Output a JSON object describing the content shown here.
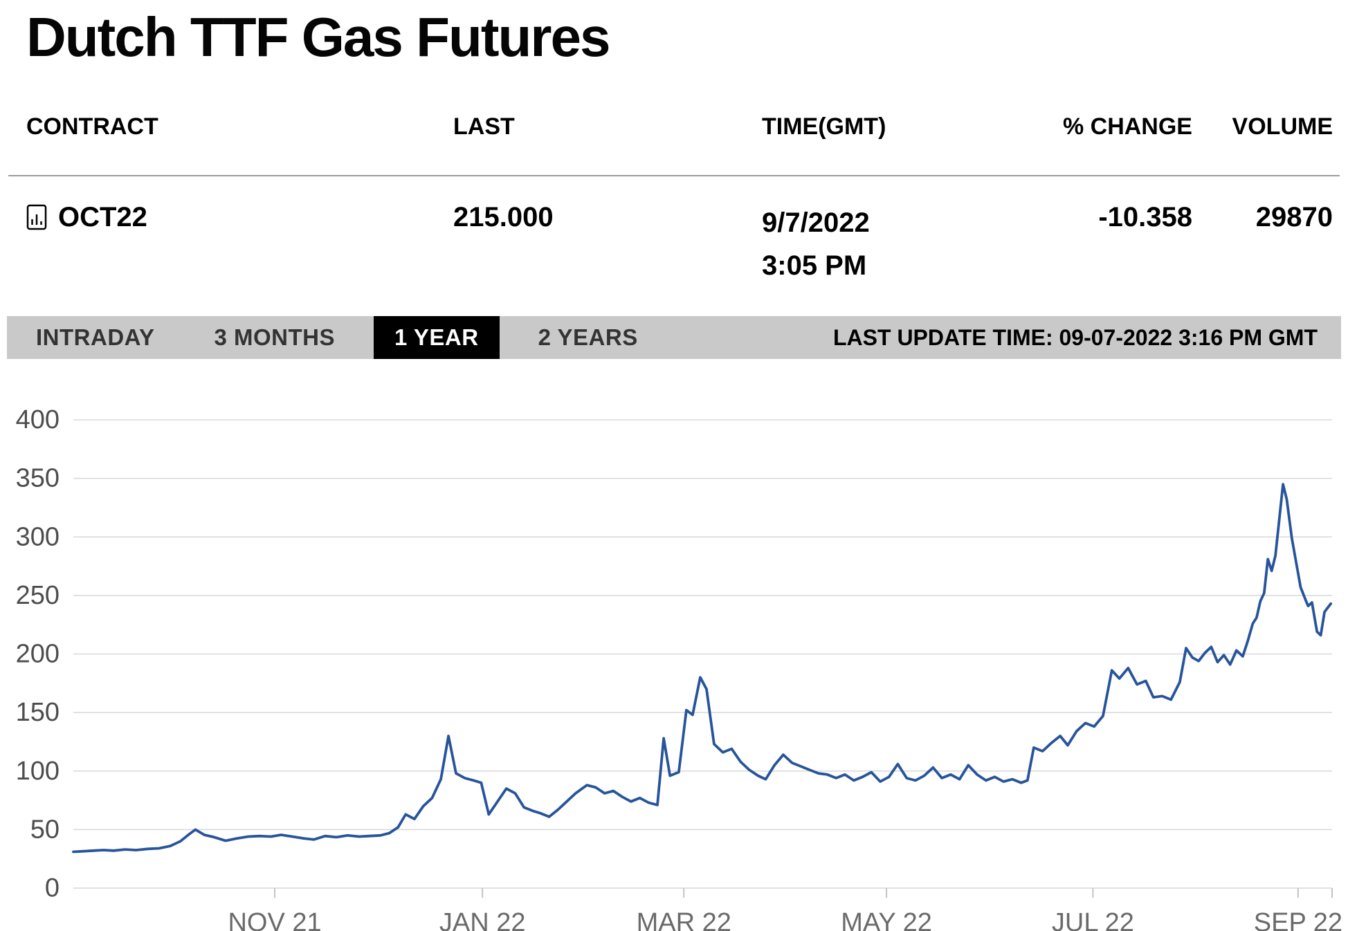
{
  "page": {
    "title": "Dutch TTF Gas Futures"
  },
  "table": {
    "headers": [
      "CONTRACT",
      "LAST",
      "TIME(GMT)",
      "% CHANGE",
      "VOLUME"
    ],
    "rows": [
      {
        "icon": "chart-document-icon",
        "contract": "OCT22",
        "last": "215.000",
        "date": "9/7/2022",
        "time": "3:05 PM",
        "change": "-10.358",
        "volume": "29870"
      }
    ]
  },
  "tabs": {
    "items": [
      {
        "label": "INTRADAY",
        "active": false
      },
      {
        "label": "3 MONTHS",
        "active": false
      },
      {
        "label": "1 YEAR",
        "active": true
      },
      {
        "label": "2 YEARS",
        "active": false
      }
    ],
    "last_update": "LAST UPDATE TIME: 09-07-2022 3:16 PM GMT"
  },
  "chart_data": {
    "type": "line",
    "title": "",
    "xlabel": "",
    "ylabel": "",
    "ylim": [
      0,
      400
    ],
    "y_ticks": [
      0,
      50,
      100,
      150,
      200,
      250,
      300,
      350,
      400
    ],
    "x_ticks": [
      {
        "label": "NOV 21",
        "pos": 16
      },
      {
        "label": "JAN 22",
        "pos": 32.5
      },
      {
        "label": "MAR 22",
        "pos": 48.5
      },
      {
        "label": "MAY 22",
        "pos": 64.6
      },
      {
        "label": "JUL 22",
        "pos": 81
      },
      {
        "label": "SEP 22",
        "pos": 97.3
      },
      {
        "label": "",
        "pos": 100
      }
    ],
    "grid": true,
    "legend": "none",
    "line_color": "#27549b",
    "grid_color": "#d8d8d8",
    "axis_color": "#4d4d4d",
    "x_axis_color": "#6a6a6a",
    "series": [
      {
        "name": "OCT22",
        "x_unit": "percent-of-year-axis",
        "points": [
          [
            0,
            31
          ],
          [
            0.8,
            31.5
          ],
          [
            1.6,
            32
          ],
          [
            2.4,
            32.5
          ],
          [
            3.2,
            32
          ],
          [
            4.1,
            33
          ],
          [
            5,
            32.5
          ],
          [
            5.9,
            33.5
          ],
          [
            6.8,
            34
          ],
          [
            7.7,
            36
          ],
          [
            8.5,
            40
          ],
          [
            9.2,
            46
          ],
          [
            9.7,
            50
          ],
          [
            10.4,
            45.5
          ],
          [
            11.2,
            43.5
          ],
          [
            12.1,
            40.5
          ],
          [
            13,
            42.5
          ],
          [
            13.9,
            44
          ],
          [
            14.8,
            44.5
          ],
          [
            15.7,
            44
          ],
          [
            16.5,
            45.5
          ],
          [
            17.4,
            44
          ],
          [
            18.3,
            42.5
          ],
          [
            19.1,
            41.5
          ],
          [
            20,
            44.5
          ],
          [
            20.9,
            43.5
          ],
          [
            21.8,
            45
          ],
          [
            22.7,
            44
          ],
          [
            23.5,
            44.5
          ],
          [
            24.4,
            45
          ],
          [
            25.1,
            47
          ],
          [
            25.8,
            52
          ],
          [
            26.4,
            63
          ],
          [
            27.1,
            59
          ],
          [
            27.8,
            70
          ],
          [
            28.5,
            77
          ],
          [
            29.2,
            93
          ],
          [
            29.8,
            130
          ],
          [
            30.4,
            98
          ],
          [
            31.1,
            94
          ],
          [
            31.8,
            92
          ],
          [
            32.4,
            90
          ],
          [
            33,
            63
          ],
          [
            33.7,
            74
          ],
          [
            34.4,
            85
          ],
          [
            35.1,
            81
          ],
          [
            35.8,
            69
          ],
          [
            36.5,
            66
          ],
          [
            37.1,
            64
          ],
          [
            37.8,
            61
          ],
          [
            38.5,
            67
          ],
          [
            39.2,
            74
          ],
          [
            39.9,
            81
          ],
          [
            40.8,
            88
          ],
          [
            41.5,
            86
          ],
          [
            42.2,
            81
          ],
          [
            42.9,
            83
          ],
          [
            43.6,
            78
          ],
          [
            44.3,
            74
          ],
          [
            45,
            77
          ],
          [
            45.7,
            73
          ],
          [
            46.4,
            71
          ],
          [
            46.9,
            128
          ],
          [
            47.4,
            96
          ],
          [
            48.1,
            99
          ],
          [
            48.7,
            152
          ],
          [
            49.2,
            148
          ],
          [
            49.8,
            180
          ],
          [
            50.3,
            170
          ],
          [
            50.9,
            123
          ],
          [
            51.6,
            116
          ],
          [
            52.3,
            119
          ],
          [
            53,
            108
          ],
          [
            53.7,
            101
          ],
          [
            54.4,
            96
          ],
          [
            55,
            93
          ],
          [
            55.7,
            105
          ],
          [
            56.4,
            114
          ],
          [
            57.1,
            107
          ],
          [
            57.8,
            104
          ],
          [
            58.5,
            101
          ],
          [
            59.2,
            98
          ],
          [
            59.9,
            97
          ],
          [
            60.6,
            94
          ],
          [
            61.3,
            97
          ],
          [
            62,
            92
          ],
          [
            62.7,
            95
          ],
          [
            63.4,
            99
          ],
          [
            64.1,
            91
          ],
          [
            64.8,
            95
          ],
          [
            65.5,
            106
          ],
          [
            66.2,
            94
          ],
          [
            66.9,
            92
          ],
          [
            67.6,
            96
          ],
          [
            68.3,
            103
          ],
          [
            69,
            94
          ],
          [
            69.7,
            97
          ],
          [
            70.4,
            93
          ],
          [
            71.1,
            105
          ],
          [
            71.8,
            97
          ],
          [
            72.5,
            92
          ],
          [
            73.2,
            95
          ],
          [
            73.9,
            91
          ],
          [
            74.6,
            93
          ],
          [
            75.3,
            90
          ],
          [
            75.8,
            92
          ],
          [
            76.3,
            120
          ],
          [
            77,
            117
          ],
          [
            77.7,
            124
          ],
          [
            78.4,
            130
          ],
          [
            79,
            122
          ],
          [
            79.7,
            134
          ],
          [
            80.4,
            141
          ],
          [
            81.1,
            138
          ],
          [
            81.8,
            147
          ],
          [
            82.5,
            186
          ],
          [
            83.1,
            179
          ],
          [
            83.8,
            188
          ],
          [
            84.5,
            174
          ],
          [
            85.2,
            177
          ],
          [
            85.8,
            163
          ],
          [
            86.5,
            164
          ],
          [
            87.2,
            161
          ],
          [
            87.9,
            176
          ],
          [
            88.4,
            205
          ],
          [
            88.9,
            197
          ],
          [
            89.4,
            194
          ],
          [
            89.9,
            201
          ],
          [
            90.4,
            206
          ],
          [
            90.9,
            193
          ],
          [
            91.4,
            199
          ],
          [
            91.9,
            191
          ],
          [
            92.4,
            203
          ],
          [
            92.9,
            198
          ],
          [
            93.3,
            211
          ],
          [
            93.7,
            226
          ],
          [
            94,
            231
          ],
          [
            94.3,
            245
          ],
          [
            94.6,
            252
          ],
          [
            94.9,
            281
          ],
          [
            95.2,
            271
          ],
          [
            95.5,
            284
          ],
          [
            96.1,
            345
          ],
          [
            96.4,
            332
          ],
          [
            96.8,
            299
          ],
          [
            97.5,
            257
          ],
          [
            97.9,
            246
          ],
          [
            98.1,
            241
          ],
          [
            98.4,
            244
          ],
          [
            98.8,
            219
          ],
          [
            99.1,
            216
          ],
          [
            99.4,
            236
          ],
          [
            99.9,
            243
          ]
        ]
      }
    ]
  }
}
